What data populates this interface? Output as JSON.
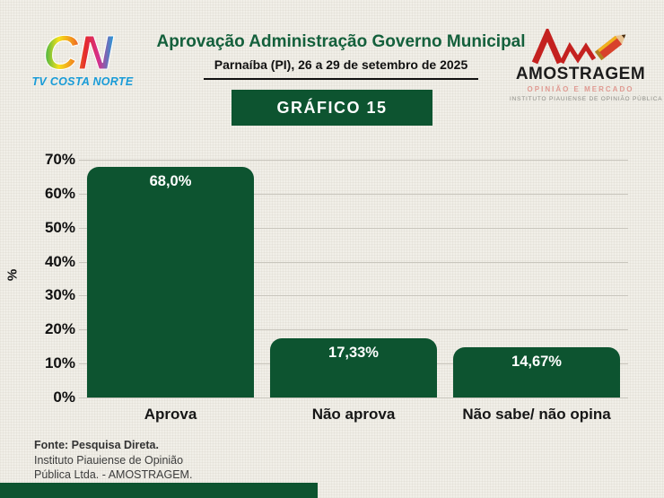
{
  "header": {
    "title": "Aprovação Administração Governo Municipal",
    "subtitle": "Parnaíba (PI), 26 a 29 de setembro de 2025",
    "badge_label": "GRÁFICO 15",
    "tv_logo": {
      "mark": "CN",
      "text": "TV COSTA NORTE"
    },
    "amostragem_logo": {
      "name": "AMOSTRAGEM",
      "tagline": "OPINIÃO E MERCADO",
      "institute": "INSTITUTO PIAUIENSE DE OPINIÃO PÚBLICA"
    }
  },
  "chart_data": {
    "type": "bar",
    "categories": [
      "Aprova",
      "Não aprova",
      "Não sabe/ não opina"
    ],
    "values": [
      68.0,
      17.33,
      14.67
    ],
    "value_labels": [
      "68,0%",
      "17,33%",
      "14,67%"
    ],
    "title": "Aprovação Administração Governo Municipal",
    "xlabel": "",
    "ylabel": "%",
    "ylim": [
      0,
      70
    ],
    "ytick_step": 10,
    "ytick_labels": [
      "0%",
      "10%",
      "20%",
      "30%",
      "40%",
      "50%",
      "60%",
      "70%"
    ],
    "grid": true,
    "legend": null,
    "bar_color": "#0d5430",
    "value_label_color": "#ffffff"
  },
  "footer": {
    "source_bold": "Fonte: Pesquisa Direta.",
    "source_line2": "Instituto Piauiense de Opinião",
    "source_line3": "Pública Ltda. - AMOSTRAGEM."
  },
  "colors": {
    "accent_green": "#0d5430",
    "title_green": "#14603c",
    "background": "#f1efe8",
    "tv_logo_blue": "#189bd7",
    "amostragem_red": "#c4211f",
    "tagline_pink": "#e09a92",
    "institute_gray": "#8d8d87",
    "gridline": "#c9c6bd"
  }
}
